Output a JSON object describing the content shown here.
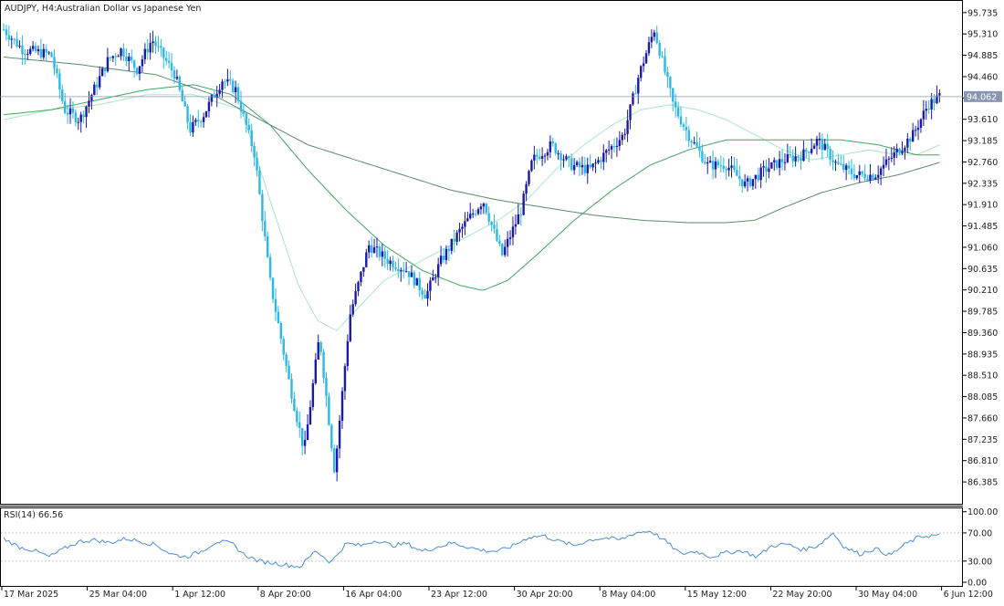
{
  "header": {
    "symbol": "AUDJPY, H4:",
    "description": "Australian Dollar vs Japanese Yen"
  },
  "colors": {
    "bull": "#1a1aa8",
    "bear": "#2ab8e8",
    "ma_fast": "#a8e6c8",
    "ma_mid": "#3fa860",
    "ma_slow": "#5a8a6e",
    "rsi": "#4a8ed8",
    "current_line": "#8a96b0",
    "current_label_bg": "#8a96b0"
  },
  "main_axis": {
    "ticks": [
      "95.735",
      "95.310",
      "94.885",
      "94.460",
      "94.035",
      "93.610",
      "93.185",
      "92.760",
      "92.335",
      "91.910",
      "91.485",
      "91.060",
      "90.635",
      "90.210",
      "89.785",
      "89.360",
      "88.935",
      "88.510",
      "88.085",
      "87.660",
      "87.235",
      "86.810",
      "86.385"
    ]
  },
  "current_price": "94.062",
  "rsi": {
    "label": "RSI(14) 66.56",
    "ticks": [
      "100.00",
      "70.00",
      "30.00",
      "0.00"
    ],
    "levels": [
      70,
      30
    ]
  },
  "time_axis": {
    "labels": [
      "17 Mar 2025",
      "25 Mar 04:00",
      "1 Apr 12:00",
      "8 Apr 20:00",
      "16 Apr 04:00",
      "23 Apr 12:00",
      "30 Apr 20:00",
      "8 May 04:00",
      "15 May 12:00",
      "22 May 20:00",
      "30 May 04:00",
      "6 Jun 12:00"
    ]
  },
  "chart_data": {
    "type": "candlestick",
    "symbol": "AUDJPY",
    "timeframe": "H4",
    "ylim": [
      85.95,
      95.95
    ],
    "rsi_ylim": [
      0,
      100
    ],
    "bars_total": 352,
    "price_path": [
      [
        0,
        95.4
      ],
      [
        10,
        95.0
      ],
      [
        25,
        94.9
      ],
      [
        32,
        93.8
      ],
      [
        40,
        93.6
      ],
      [
        55,
        94.8
      ],
      [
        62,
        95.0
      ],
      [
        70,
        94.6
      ],
      [
        78,
        95.2
      ],
      [
        90,
        94.5
      ],
      [
        98,
        93.4
      ],
      [
        105,
        93.7
      ],
      [
        115,
        94.4
      ],
      [
        122,
        94.2
      ],
      [
        132,
        92.9
      ],
      [
        140,
        90.4
      ],
      [
        150,
        88.4
      ],
      [
        158,
        87.0
      ],
      [
        166,
        89.3
      ],
      [
        174,
        86.6
      ],
      [
        182,
        89.7
      ],
      [
        192,
        91.1
      ],
      [
        202,
        90.8
      ],
      [
        212,
        90.6
      ],
      [
        222,
        90.1
      ],
      [
        230,
        90.8
      ],
      [
        240,
        91.4
      ],
      [
        252,
        92.0
      ],
      [
        262,
        90.9
      ],
      [
        272,
        91.8
      ],
      [
        278,
        92.8
      ],
      [
        288,
        93.1
      ],
      [
        298,
        92.7
      ],
      [
        308,
        92.6
      ],
      [
        318,
        93.0
      ],
      [
        326,
        93.3
      ],
      [
        334,
        94.5
      ],
      [
        342,
        95.4
      ],
      [
        352,
        93.9
      ],
      [
        360,
        93.3
      ],
      [
        370,
        92.7
      ],
      [
        380,
        92.7
      ],
      [
        390,
        92.3
      ],
      [
        400,
        92.6
      ],
      [
        410,
        92.8
      ],
      [
        420,
        92.9
      ],
      [
        428,
        93.2
      ],
      [
        438,
        92.7
      ],
      [
        448,
        92.5
      ],
      [
        458,
        92.5
      ],
      [
        468,
        92.9
      ],
      [
        478,
        93.3
      ],
      [
        486,
        93.9
      ],
      [
        492,
        94.06
      ]
    ],
    "ma_fast_path": [
      [
        0,
        93.6
      ],
      [
        25,
        93.8
      ],
      [
        50,
        93.9
      ],
      [
        75,
        94.1
      ],
      [
        100,
        94.1
      ],
      [
        125,
        93.8
      ],
      [
        140,
        92.0
      ],
      [
        155,
        90.3
      ],
      [
        165,
        89.6
      ],
      [
        175,
        89.4
      ],
      [
        185,
        89.8
      ],
      [
        200,
        90.4
      ],
      [
        215,
        90.7
      ],
      [
        230,
        91.0
      ],
      [
        245,
        91.3
      ],
      [
        260,
        91.6
      ],
      [
        275,
        92.0
      ],
      [
        290,
        92.6
      ],
      [
        305,
        93.1
      ],
      [
        320,
        93.5
      ],
      [
        335,
        93.8
      ],
      [
        350,
        93.9
      ],
      [
        365,
        93.8
      ],
      [
        380,
        93.6
      ],
      [
        395,
        93.3
      ],
      [
        410,
        93.0
      ],
      [
        425,
        92.8
      ],
      [
        440,
        92.9
      ],
      [
        455,
        93.0
      ],
      [
        470,
        92.9
      ],
      [
        480,
        92.9
      ],
      [
        492,
        93.1
      ]
    ],
    "ma_mid_path": [
      [
        0,
        93.7
      ],
      [
        25,
        93.8
      ],
      [
        50,
        94.0
      ],
      [
        75,
        94.2
      ],
      [
        100,
        94.3
      ],
      [
        120,
        94.1
      ],
      [
        140,
        93.5
      ],
      [
        160,
        92.6
      ],
      [
        180,
        91.8
      ],
      [
        200,
        91.1
      ],
      [
        220,
        90.6
      ],
      [
        240,
        90.3
      ],
      [
        252,
        90.2
      ],
      [
        265,
        90.4
      ],
      [
        280,
        90.9
      ],
      [
        300,
        91.6
      ],
      [
        320,
        92.2
      ],
      [
        340,
        92.7
      ],
      [
        360,
        93.0
      ],
      [
        380,
        93.2
      ],
      [
        400,
        93.2
      ],
      [
        420,
        93.2
      ],
      [
        440,
        93.2
      ],
      [
        460,
        93.1
      ],
      [
        480,
        92.9
      ],
      [
        492,
        92.9
      ]
    ],
    "ma_slow_path": [
      [
        0,
        94.85
      ],
      [
        40,
        94.7
      ],
      [
        80,
        94.5
      ],
      [
        110,
        94.1
      ],
      [
        135,
        93.6
      ],
      [
        160,
        93.1
      ],
      [
        185,
        92.8
      ],
      [
        210,
        92.5
      ],
      [
        235,
        92.2
      ],
      [
        260,
        92.0
      ],
      [
        285,
        91.85
      ],
      [
        310,
        91.7
      ],
      [
        335,
        91.6
      ],
      [
        360,
        91.55
      ],
      [
        380,
        91.55
      ],
      [
        395,
        91.6
      ],
      [
        410,
        91.85
      ],
      [
        430,
        92.15
      ],
      [
        450,
        92.35
      ],
      [
        470,
        92.5
      ],
      [
        492,
        92.75
      ]
    ],
    "rsi_path": [
      [
        0,
        62
      ],
      [
        8,
        50
      ],
      [
        16,
        45
      ],
      [
        24,
        36
      ],
      [
        32,
        48
      ],
      [
        40,
        58
      ],
      [
        48,
        60
      ],
      [
        56,
        56
      ],
      [
        64,
        62
      ],
      [
        72,
        58
      ],
      [
        80,
        53
      ],
      [
        88,
        40
      ],
      [
        96,
        36
      ],
      [
        104,
        44
      ],
      [
        112,
        58
      ],
      [
        120,
        55
      ],
      [
        126,
        40
      ],
      [
        134,
        30
      ],
      [
        140,
        28
      ],
      [
        148,
        25
      ],
      [
        156,
        22
      ],
      [
        164,
        45
      ],
      [
        172,
        28
      ],
      [
        180,
        55
      ],
      [
        188,
        52
      ],
      [
        196,
        60
      ],
      [
        204,
        52
      ],
      [
        212,
        55
      ],
      [
        220,
        44
      ],
      [
        228,
        50
      ],
      [
        236,
        56
      ],
      [
        244,
        50
      ],
      [
        252,
        45
      ],
      [
        260,
        44
      ],
      [
        268,
        52
      ],
      [
        276,
        64
      ],
      [
        284,
        66
      ],
      [
        292,
        58
      ],
      [
        300,
        52
      ],
      [
        308,
        60
      ],
      [
        316,
        63
      ],
      [
        324,
        60
      ],
      [
        332,
        70
      ],
      [
        340,
        73
      ],
      [
        348,
        58
      ],
      [
        356,
        40
      ],
      [
        364,
        44
      ],
      [
        372,
        36
      ],
      [
        380,
        42
      ],
      [
        388,
        45
      ],
      [
        396,
        36
      ],
      [
        404,
        52
      ],
      [
        412,
        54
      ],
      [
        420,
        46
      ],
      [
        428,
        52
      ],
      [
        436,
        70
      ],
      [
        442,
        50
      ],
      [
        450,
        40
      ],
      [
        458,
        48
      ],
      [
        466,
        38
      ],
      [
        474,
        54
      ],
      [
        482,
        65
      ],
      [
        490,
        66.56
      ]
    ]
  }
}
